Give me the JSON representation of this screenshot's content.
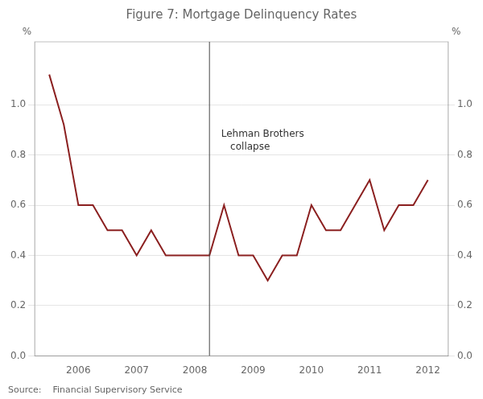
{
  "chart_data": {
    "type": "line",
    "title": "Figure 7: Mortgage Delinquency Rates",
    "source": "Source:    Financial Supervisory Service",
    "ylabel": "%",
    "y2label": "%",
    "color": "#8B2020",
    "x": [
      2005.5,
      2005.75,
      2006.0,
      2006.25,
      2006.5,
      2006.75,
      2007.0,
      2007.25,
      2007.5,
      2007.75,
      2008.0,
      2008.25,
      2008.5,
      2008.75,
      2009.0,
      2009.25,
      2009.5,
      2009.75,
      2010.0,
      2010.25,
      2010.5,
      2010.75,
      2011.0,
      2011.25,
      2011.5,
      2011.75,
      2012.0
    ],
    "values": [
      1.12,
      0.92,
      0.6,
      0.6,
      0.5,
      0.5,
      0.4,
      0.5,
      0.4,
      0.4,
      0.4,
      0.4,
      0.6,
      0.4,
      0.4,
      0.3,
      0.4,
      0.4,
      0.6,
      0.5,
      0.5,
      0.6,
      0.7,
      0.5,
      0.6,
      0.6,
      0.7
    ],
    "xlim": [
      2005.25,
      2012.35
    ],
    "xticks": [
      2006,
      2007,
      2008,
      2009,
      2010,
      2011,
      2012
    ],
    "ylim": [
      0.0,
      1.25
    ],
    "yticks": [
      {
        "value": 0.0,
        "label": "0.0"
      },
      {
        "value": 0.2,
        "label": "0.2"
      },
      {
        "value": 0.4,
        "label": "0.4"
      },
      {
        "value": 0.6,
        "label": "0.6"
      },
      {
        "value": 0.8,
        "label": "0.8"
      },
      {
        "value": 1.0,
        "label": "1.0"
      }
    ],
    "y2lim": [
      0.0,
      1.25
    ],
    "y2ticks": [
      {
        "value": 0.0,
        "label": "0.0"
      },
      {
        "value": 0.2,
        "label": "0.2"
      },
      {
        "value": 0.4,
        "label": "0.4"
      },
      {
        "value": 0.6,
        "label": "0.6"
      },
      {
        "value": 0.8,
        "label": "0.8"
      },
      {
        "value": 1.0,
        "label": "1.0"
      }
    ],
    "vlines": [
      {
        "x": 2008.25,
        "label": [
          "Lehman Brothers",
          "   collapse"
        ],
        "label_x": 2008.45,
        "label_y": 0.9
      }
    ],
    "grid": "y"
  }
}
